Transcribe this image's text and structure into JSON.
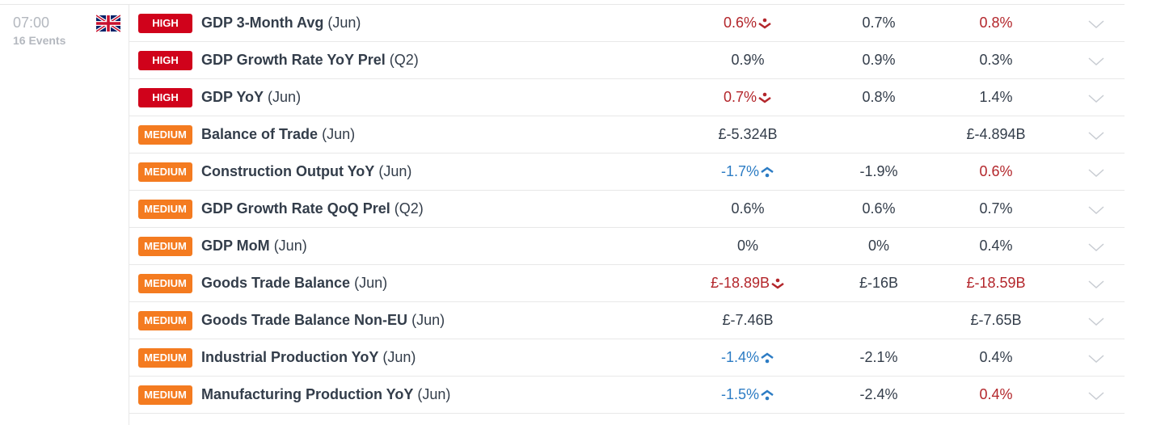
{
  "time": "07:00",
  "events_count": "16 Events",
  "country_flag": "uk-flag-icon",
  "colors": {
    "high": "#d0021b",
    "medium": "#f47b20",
    "worse": "#b3262b",
    "better": "#2c7cc4"
  },
  "rows": [
    {
      "importance": "HIGH",
      "name": "GDP 3-Month Avg",
      "period": "(Jun)",
      "actual": "0.6%",
      "actual_trend": "down",
      "forecast": "0.7%",
      "previous": "0.8%",
      "previous_color": "red"
    },
    {
      "importance": "HIGH",
      "name": "GDP Growth Rate YoY Prel",
      "period": "(Q2)",
      "actual": "0.9%",
      "actual_trend": "",
      "forecast": "0.9%",
      "previous": "0.3%",
      "previous_color": ""
    },
    {
      "importance": "HIGH",
      "name": "GDP YoY",
      "period": "(Jun)",
      "actual": "0.7%",
      "actual_trend": "down",
      "forecast": "0.8%",
      "previous": "1.4%",
      "previous_color": ""
    },
    {
      "importance": "MEDIUM",
      "name": "Balance of Trade",
      "period": "(Jun)",
      "actual": "£-5.324B",
      "actual_trend": "",
      "forecast": "",
      "previous": "£-4.894B",
      "previous_color": ""
    },
    {
      "importance": "MEDIUM",
      "name": "Construction Output YoY",
      "period": "(Jun)",
      "actual": "-1.7%",
      "actual_trend": "up",
      "forecast": "-1.9%",
      "previous": "0.6%",
      "previous_color": "red"
    },
    {
      "importance": "MEDIUM",
      "name": "GDP Growth Rate QoQ Prel",
      "period": "(Q2)",
      "actual": "0.6%",
      "actual_trend": "",
      "forecast": "0.6%",
      "previous": "0.7%",
      "previous_color": ""
    },
    {
      "importance": "MEDIUM",
      "name": "GDP MoM",
      "period": "(Jun)",
      "actual": "0%",
      "actual_trend": "",
      "forecast": "0%",
      "previous": "0.4%",
      "previous_color": ""
    },
    {
      "importance": "MEDIUM",
      "name": "Goods Trade Balance",
      "period": "(Jun)",
      "actual": "£-18.89B",
      "actual_trend": "down",
      "forecast": "£-16B",
      "previous": "£-18.59B",
      "previous_color": "red"
    },
    {
      "importance": "MEDIUM",
      "name": "Goods Trade Balance Non-EU",
      "period": "(Jun)",
      "actual": "£-7.46B",
      "actual_trend": "",
      "forecast": "",
      "previous": "£-7.65B",
      "previous_color": ""
    },
    {
      "importance": "MEDIUM",
      "name": "Industrial Production YoY",
      "period": "(Jun)",
      "actual": "-1.4%",
      "actual_trend": "up",
      "forecast": "-2.1%",
      "previous": "0.4%",
      "previous_color": ""
    },
    {
      "importance": "MEDIUM",
      "name": "Manufacturing Production YoY",
      "period": "(Jun)",
      "actual": "-1.5%",
      "actual_trend": "up",
      "forecast": "-2.4%",
      "previous": "0.4%",
      "previous_color": "red"
    }
  ]
}
